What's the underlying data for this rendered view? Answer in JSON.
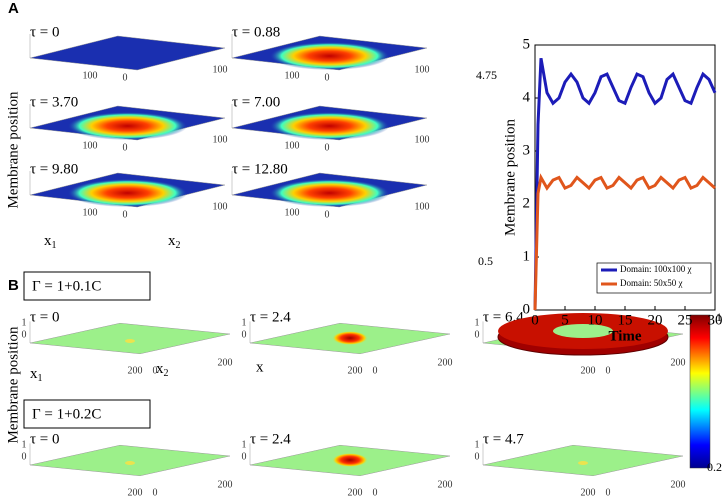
{
  "panel_labels": [
    "A",
    "B"
  ],
  "panel_a": {
    "ylabel": "Membrane position",
    "x1": "x",
    "x1_sub": "1",
    "x2": "x",
    "x2_sub": "2",
    "cbar_max": "4.75",
    "cbar_min": "0.5",
    "plots": [
      {
        "tau": "τ = 0",
        "ticks": [
          "100",
          "0",
          "100"
        ]
      },
      {
        "tau": "τ = 0.88",
        "ticks": [
          "100",
          "0",
          "100"
        ]
      },
      {
        "tau": "τ = 3.70",
        "ticks": [
          "100",
          "0",
          "100"
        ]
      },
      {
        "tau": "τ = 7.00",
        "ticks": [
          "100",
          "0",
          "100"
        ]
      },
      {
        "tau": "τ = 9.80",
        "ticks": [
          "100",
          "0",
          "100"
        ]
      },
      {
        "tau": "τ = 12.80",
        "ticks": [
          "100",
          "0",
          "100"
        ]
      }
    ]
  },
  "panel_b": {
    "ylabel": "Membrane position",
    "x1": "x",
    "x1_sub": "1",
    "x2": "x",
    "x2_sub": "2",
    "x": "x",
    "cbar_max": "1",
    "cbar_min": "0.2",
    "rows": [
      {
        "gamma": "Γ = 1+0.1C",
        "plots": [
          {
            "tau": "τ = 0",
            "ticks": [
              "1",
              "0",
              "200",
              "0",
              "200"
            ]
          },
          {
            "tau": "τ = 2.4",
            "ticks": [
              "1",
              "0",
              "200",
              "0",
              "200"
            ]
          },
          {
            "tau": "τ = 6.4",
            "ticks": [
              "1",
              "0",
              "200",
              "0",
              "200"
            ]
          }
        ]
      },
      {
        "gamma": "Γ = 1+0.2C",
        "plots": [
          {
            "tau": "τ = 0",
            "ticks": [
              "1",
              "0",
              "200",
              "0",
              "200"
            ]
          },
          {
            "tau": "τ = 2.4",
            "ticks": [
              "1",
              "0",
              "200",
              "0",
              "200"
            ]
          },
          {
            "tau": "τ = 4.7",
            "ticks": [
              "1",
              "0",
              "200",
              "0",
              "200"
            ]
          }
        ]
      }
    ]
  },
  "chart_data": {
    "type": "line",
    "xlabel": "Time",
    "ylabel": "Membrane position",
    "x": [
      0,
      0.5,
      1,
      2,
      3,
      4,
      5,
      6,
      7,
      8,
      9,
      10,
      11,
      12,
      13,
      14,
      15,
      16,
      17,
      18,
      19,
      20,
      21,
      22,
      23,
      24,
      25,
      26,
      27,
      28,
      29,
      30
    ],
    "series": [
      {
        "name": "Domain: 100x100 χ",
        "color": "#1c1cb8",
        "values": [
          0,
          3.5,
          4.75,
          4.1,
          3.9,
          4.0,
          4.3,
          4.45,
          4.3,
          4.0,
          3.9,
          4.1,
          4.4,
          4.45,
          4.2,
          3.95,
          3.9,
          4.2,
          4.45,
          4.4,
          4.1,
          3.9,
          4.0,
          4.35,
          4.45,
          4.2,
          3.95,
          3.9,
          4.2,
          4.45,
          4.35,
          4.1
        ]
      },
      {
        "name": "Domain: 50x50 χ",
        "color": "#e0561c",
        "values": [
          0,
          2.2,
          2.5,
          2.3,
          2.45,
          2.5,
          2.3,
          2.35,
          2.5,
          2.4,
          2.3,
          2.45,
          2.5,
          2.3,
          2.35,
          2.5,
          2.4,
          2.3,
          2.45,
          2.5,
          2.3,
          2.35,
          2.5,
          2.4,
          2.3,
          2.45,
          2.5,
          2.3,
          2.35,
          2.5,
          2.4,
          2.3
        ]
      }
    ],
    "xlim": [
      0,
      30
    ],
    "xticks": [
      0,
      5,
      10,
      15,
      20,
      25,
      30
    ],
    "ylim": [
      0,
      5
    ],
    "yticks": [
      0,
      1,
      2,
      3,
      4,
      5
    ],
    "legend": "lower right"
  }
}
